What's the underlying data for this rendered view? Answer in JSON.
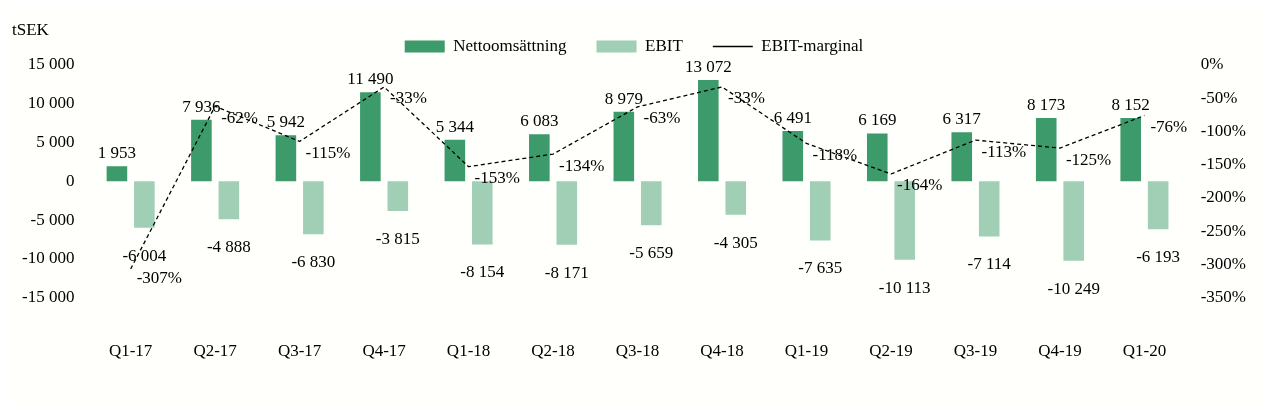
{
  "chart_data": {
    "type": "bar",
    "ylabel": "tSEK",
    "categories": [
      "Q1-17",
      "Q2-17",
      "Q3-17",
      "Q4-17",
      "Q1-18",
      "Q2-18",
      "Q3-18",
      "Q4-18",
      "Q1-19",
      "Q2-19",
      "Q3-19",
      "Q4-19",
      "Q1-20"
    ],
    "series": [
      {
        "name": "Nettoomsättning",
        "color": "#3d9a6a",
        "values": [
          1953,
          7936,
          5942,
          11490,
          5344,
          6083,
          8979,
          13072,
          6491,
          6169,
          6317,
          8173,
          8152
        ],
        "value_labels": [
          "1 953",
          "7 936",
          "5 942",
          "11 490",
          "5 344",
          "6 083",
          "8 979",
          "13 072",
          "6 491",
          "6 169",
          "6 317",
          "8 173",
          "8 152"
        ]
      },
      {
        "name": "EBIT",
        "color": "#a0cfb6",
        "values": [
          -6004,
          -4888,
          -6830,
          -3815,
          -8154,
          -8171,
          -5659,
          -4305,
          -7635,
          -10113,
          -7114,
          -10249,
          -6193
        ],
        "value_labels": [
          "-6 004",
          "-4 888",
          "-6 830",
          "-3 815",
          "-8 154",
          "-8 171",
          "-5 659",
          "-4 305",
          "-7 635",
          "-10 113",
          "-7 114",
          "-10 249",
          "-6 193"
        ]
      },
      {
        "name": "EBIT-marginal",
        "type": "line",
        "axis": "y2",
        "color": "#000000",
        "line_style": "dashed",
        "marker": "none",
        "values": [
          -307,
          -62,
          -115,
          -33,
          -153,
          -134,
          -63,
          -33,
          -118,
          -164,
          -113,
          -125,
          -76
        ],
        "value_labels": [
          "-307%",
          "-62%",
          "-115%",
          "-33%",
          "-153%",
          "-134%",
          "-63%",
          "-33%",
          "-118%",
          "-164%",
          "-113%",
          "-125%",
          "-76%"
        ]
      }
    ],
    "ylim": [
      -15000,
      15000
    ],
    "yticks": [
      {
        "value": -15000,
        "label": "-15 000"
      },
      {
        "value": -10000,
        "label": "-10 000"
      },
      {
        "value": -5000,
        "label": "-5 000"
      },
      0,
      {
        "value": 5000,
        "label": "5 000"
      },
      {
        "value": 10000,
        "label": "10 000"
      },
      {
        "value": 15000,
        "label": "15 000"
      }
    ],
    "y2lim": [
      -350,
      0
    ],
    "y2ticks": [
      {
        "value": -350,
        "label": "-350%"
      },
      {
        "value": -300,
        "label": "-300%"
      },
      {
        "value": -250,
        "label": "-250%"
      },
      {
        "value": -200,
        "label": "-200%"
      },
      {
        "value": -150,
        "label": "-150%"
      },
      {
        "value": -100,
        "label": "-100%"
      },
      {
        "value": -50,
        "label": "-50%"
      },
      {
        "value": 0,
        "label": "0%"
      }
    ],
    "grid": false,
    "legend": "top"
  }
}
